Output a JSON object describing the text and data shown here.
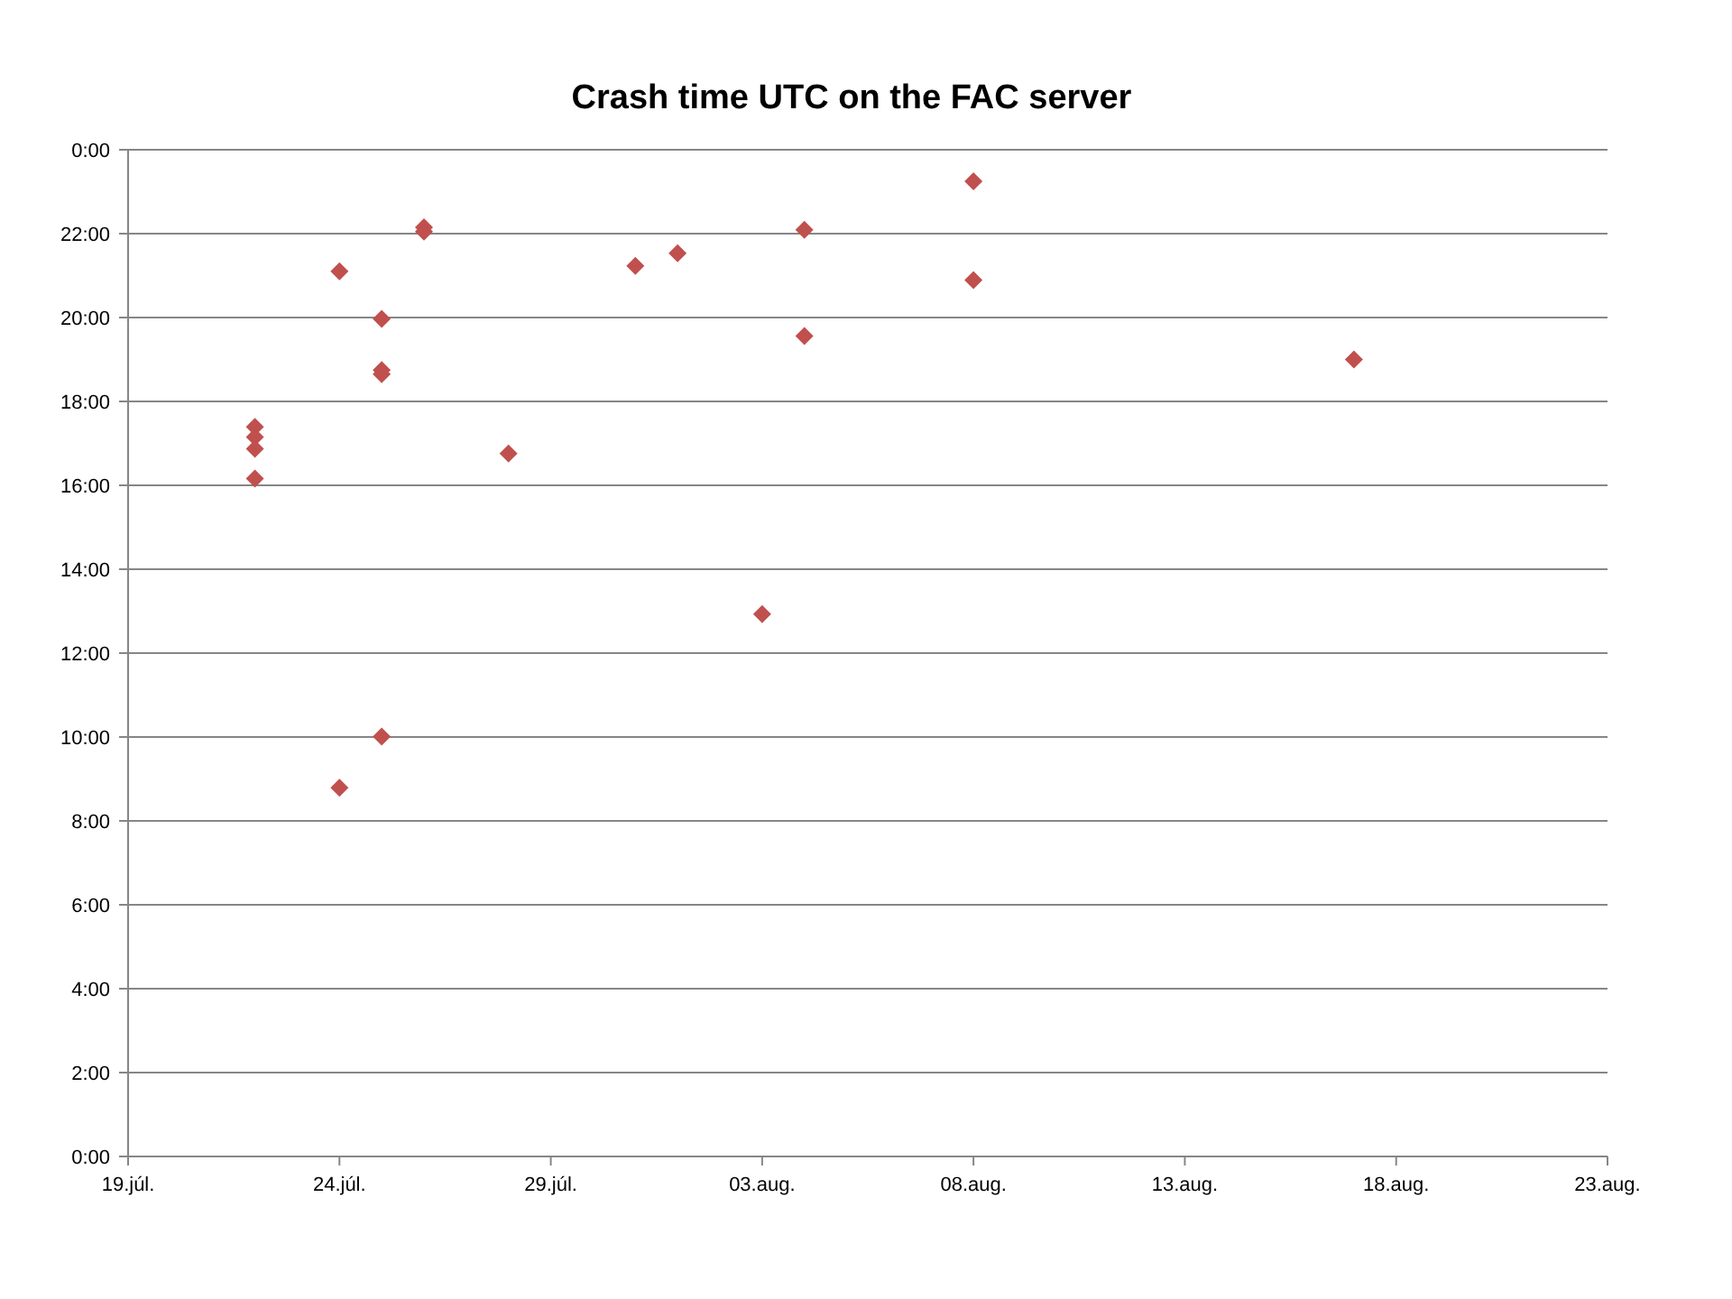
{
  "chart_data": {
    "type": "scatter",
    "title": "Crash time UTC on the FAC server",
    "x": [
      "--07-22",
      "--07-22",
      "--07-22",
      "--07-22",
      "--07-24",
      "--07-24",
      "--07-25",
      "--07-25",
      "--07-25",
      "--07-25",
      "--07-26",
      "--07-26",
      "--07-28",
      "--07-31",
      "--08-01",
      "--08-03",
      "--08-04",
      "--08-04",
      "--08-08",
      "--08-08",
      "--08-17"
    ],
    "series": [
      {
        "color": "#c0504d",
        "values": [
          17.39,
          17.15,
          16.87,
          16.16,
          21.1,
          8.79,
          19.97,
          18.75,
          18.65,
          10.01,
          22.15,
          22.05,
          16.76,
          21.23,
          21.53,
          12.93,
          22.09,
          19.56,
          23.25,
          20.89,
          19.0
        ]
      }
    ],
    "xlim": [
      "--07-19",
      "--08-23"
    ],
    "xticks": [
      {
        "value": "--07-19",
        "label": "19.júl."
      },
      {
        "value": "--07-24",
        "label": "24.júl."
      },
      {
        "value": "--07-29",
        "label": "29.júl."
      },
      {
        "value": "--08-03",
        "label": "03.aug."
      },
      {
        "value": "--08-08",
        "label": "08.aug."
      },
      {
        "value": "--08-13",
        "label": "13.aug."
      },
      {
        "value": "--08-18",
        "label": "18.aug."
      },
      {
        "value": "--08-23",
        "label": "23.aug."
      }
    ],
    "ylim": [
      0,
      24
    ],
    "yticks": [
      {
        "value": 0,
        "label": "0:00"
      },
      {
        "value": 2,
        "label": "2:00"
      },
      {
        "value": 4,
        "label": "4:00"
      },
      {
        "value": 6,
        "label": "6:00"
      },
      {
        "value": 8,
        "label": "8:00"
      },
      {
        "value": 10,
        "label": "10:00"
      },
      {
        "value": 12,
        "label": "12:00"
      },
      {
        "value": 14,
        "label": "14:00"
      },
      {
        "value": 16,
        "label": "16:00"
      },
      {
        "value": 18,
        "label": "18:00"
      },
      {
        "value": 20,
        "label": "20:00"
      },
      {
        "value": 22,
        "label": "22:00"
      },
      {
        "value": 24,
        "label": "0:00"
      }
    ],
    "grid": "y",
    "marker": "diamond"
  }
}
